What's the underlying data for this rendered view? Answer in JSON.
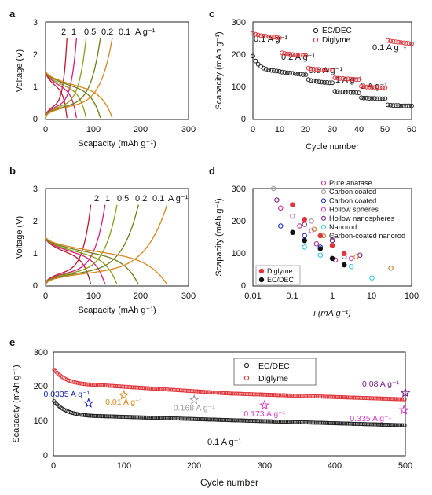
{
  "colors": {
    "rate_2": "#b8192e",
    "rate_1": "#d81b7a",
    "rate_05": "#8b9b1a",
    "rate_02": "#6b7d16",
    "rate_01": "#d9861c",
    "ec_dec": "#222222",
    "diglyme": "#e0353a"
  },
  "chart_data": [
    {
      "panel": "a",
      "type": "line",
      "panel_label": "a",
      "xlabel": "Scapacity (mAh g⁻¹)",
      "ylabel": "Voltage (V)",
      "xlim": [
        0,
        300
      ],
      "ylim": [
        0,
        3
      ],
      "x_ticks": [
        "0",
        "100",
        "200",
        "300"
      ],
      "y_ticks": [
        "0",
        "1",
        "2",
        "3"
      ],
      "rate_labels": [
        "2",
        "1",
        "0.5",
        "0.2",
        "0.1",
        "A g⁻¹"
      ],
      "series": [
        {
          "name": "2",
          "color_key": "rate_2",
          "capacity": 45
        },
        {
          "name": "1",
          "color_key": "rate_1",
          "capacity": 65
        },
        {
          "name": "0.5",
          "color_key": "rate_05",
          "capacity": 85
        },
        {
          "name": "0.2",
          "color_key": "rate_02",
          "capacity": 115
        },
        {
          "name": "0.1",
          "color_key": "rate_01",
          "capacity": 140
        }
      ]
    },
    {
      "panel": "b",
      "type": "line",
      "panel_label": "b",
      "xlabel": "Scapacity (mAh g⁻¹)",
      "ylabel": "Voltage (V)",
      "xlim": [
        0,
        300
      ],
      "ylim": [
        0,
        3
      ],
      "x_ticks": [
        "0",
        "100",
        "200",
        "300"
      ],
      "y_ticks": [
        "0",
        "1",
        "2",
        "3"
      ],
      "rate_labels": [
        "2",
        "1",
        "0.5",
        "0.2",
        "0.1",
        "A g⁻¹"
      ],
      "series": [
        {
          "name": "2",
          "color_key": "rate_2",
          "capacity": 95
        },
        {
          "name": "1",
          "color_key": "rate_1",
          "capacity": 125
        },
        {
          "name": "0.5",
          "color_key": "rate_05",
          "capacity": 150
        },
        {
          "name": "0.2",
          "color_key": "rate_02",
          "capacity": 195
        },
        {
          "name": "0.1",
          "color_key": "rate_01",
          "capacity": 255
        }
      ]
    },
    {
      "panel": "c",
      "type": "scatter",
      "panel_label": "c",
      "xlabel": "Cycle number",
      "ylabel": "Scapacity (mAh g⁻¹)",
      "xlim": [
        0,
        60
      ],
      "ylim": [
        0,
        300
      ],
      "x_ticks": [
        "0",
        "10",
        "20",
        "30",
        "40",
        "50",
        "60"
      ],
      "y_ticks": [
        "0",
        "100",
        "200",
        "300"
      ],
      "legend": [
        "EC/DEC",
        "Diglyme"
      ],
      "annotations": [
        "0.1 A g⁻¹",
        "0.2 A g⁻¹",
        "0.5 A g⁻¹",
        "1 A g⁻¹",
        "2 A g⁻¹",
        "0.1 A g⁻¹"
      ],
      "series": [
        {
          "name": "EC/DEC",
          "color_key": "ec_dec",
          "values": [
            195,
            180,
            170,
            163,
            158,
            155,
            153,
            151,
            150,
            149,
            148,
            146,
            145,
            144,
            143,
            142,
            141,
            140,
            139,
            138,
            138,
            123,
            120,
            118,
            117,
            116,
            115,
            114,
            114,
            113,
            113,
            87,
            86,
            85,
            85,
            84,
            84,
            83,
            83,
            83,
            82,
            67,
            66,
            66,
            65,
            65,
            65,
            64,
            64,
            64,
            64,
            45,
            44,
            43,
            43,
            43,
            42,
            42,
            42,
            42,
            42
          ]
        },
        {
          "name": "Diglyme",
          "color_key": "diglyme",
          "values": [
            265,
            262,
            260,
            258,
            257,
            256,
            255,
            254,
            253,
            252,
            251,
            205,
            203,
            202,
            201,
            200,
            199,
            198,
            198,
            197,
            197,
            158,
            156,
            155,
            154,
            154,
            153,
            153,
            152,
            152,
            152,
            128,
            127,
            126,
            126,
            125,
            125,
            124,
            124,
            123,
            123,
            102,
            101,
            100,
            100,
            99,
            99,
            99,
            98,
            98,
            98,
            243,
            241,
            240,
            239,
            238,
            237,
            236,
            235,
            234,
            233
          ]
        }
      ]
    },
    {
      "panel": "d",
      "type": "scatter",
      "panel_label": "d",
      "xlabel": "i (mA g⁻¹)",
      "ylabel": "Scapacity (mAh g⁻¹)",
      "x_scale": "log",
      "xlim": [
        0.01,
        100
      ],
      "ylim": [
        0,
        300
      ],
      "x_ticks": [
        "0.01",
        "0.1",
        "1",
        "10",
        "100"
      ],
      "y_ticks": [
        "0",
        "100",
        "200",
        "300"
      ],
      "legend_top": [
        "Pure anatase",
        "Carbon coated",
        "Carbon coated",
        "Hollow spheres",
        "Hollow nanospheres",
        "Nanorod",
        "Carbon-coated nanorod"
      ],
      "legend_bottom": [
        "Diglyme",
        "EC/DEC"
      ],
      "series": [
        {
          "name": "Pure anatase",
          "color": "#c0308c",
          "x": [
            0.05,
            0.15,
            0.4,
            1.2
          ],
          "y": [
            240,
            185,
            130,
            80
          ]
        },
        {
          "name": "Carbon coated",
          "color": "#9a9a9a",
          "x": [
            0.033,
            0.1,
            0.3,
            1.0
          ],
          "y": [
            300,
            250,
            200,
            150
          ]
        },
        {
          "name": "Carbon coated",
          "color": "#1a2bbd",
          "x": [
            0.05,
            0.2,
            0.5,
            2.0
          ],
          "y": [
            185,
            155,
            120,
            90
          ]
        },
        {
          "name": "Hollow spheres",
          "color": "#e040c0",
          "x": [
            0.1,
            0.3,
            1.0,
            3.0
          ],
          "y": [
            215,
            170,
            125,
            85
          ]
        },
        {
          "name": "Hollow nanospheres",
          "color": "#7a1f86",
          "x": [
            0.04,
            0.2,
            1.0,
            5.0
          ],
          "y": [
            265,
            190,
            140,
            95
          ]
        },
        {
          "name": "Nanorod",
          "color": "#33c7e0",
          "x": [
            0.2,
            0.5,
            3.0,
            10.0
          ],
          "y": [
            120,
            95,
            60,
            25
          ]
        },
        {
          "name": "Carbon-coated nanorod",
          "color": "#c87a2a",
          "x": [
            0.35,
            1.0,
            4.0,
            30.0
          ],
          "y": [
            175,
            125,
            90,
            55
          ]
        },
        {
          "name": "Diglyme",
          "color": "#e0353a",
          "filled": true,
          "x": [
            0.1,
            0.2,
            0.5,
            1.0,
            2.0
          ],
          "y": [
            250,
            205,
            155,
            125,
            100
          ]
        },
        {
          "name": "EC/DEC",
          "color": "#111111",
          "filled": true,
          "x": [
            0.1,
            0.2,
            0.5,
            1.0,
            2.0
          ],
          "y": [
            165,
            140,
            115,
            85,
            65
          ]
        }
      ]
    },
    {
      "panel": "e",
      "type": "scatter",
      "panel_label": "e",
      "xlabel": "Cycle number",
      "ylabel": "Scapacity (mAh g⁻¹)",
      "xlim": [
        0,
        500
      ],
      "ylim": [
        0,
        300
      ],
      "x_ticks": [
        "0",
        "100",
        "200",
        "300",
        "400",
        "500"
      ],
      "y_ticks": [
        "0",
        "100",
        "200",
        "300"
      ],
      "legend": [
        "EC/DEC",
        "Diglyme"
      ],
      "rate_text": "0.1 A g⁻¹",
      "series": [
        {
          "name": "EC/DEC",
          "color_key": "ec_dec",
          "start": 160,
          "knee": 115,
          "mid": 103,
          "end": 88
        },
        {
          "name": "Diglyme",
          "color_key": "diglyme",
          "start": 252,
          "knee": 205,
          "mid": 180,
          "end": 163
        }
      ],
      "stars": [
        {
          "label": "0.0335 A g⁻¹",
          "x": 50,
          "y": 152,
          "color": "#1a2bbd"
        },
        {
          "label": "0.01 A g⁻¹",
          "x": 100,
          "y": 175,
          "color": "#d9861c"
        },
        {
          "label": "0.168 A g⁻¹",
          "x": 200,
          "y": 162,
          "color": "#9a9a9a"
        },
        {
          "label": "0.173 A g⁻¹",
          "x": 300,
          "y": 146,
          "color": "#d63fc9"
        },
        {
          "label": "0.335 A g⁻¹",
          "x": 498,
          "y": 132,
          "color": "#d63fc9"
        },
        {
          "label": "0.08 A g⁻¹",
          "x": 500,
          "y": 182,
          "color": "#7a1f86"
        }
      ]
    }
  ]
}
